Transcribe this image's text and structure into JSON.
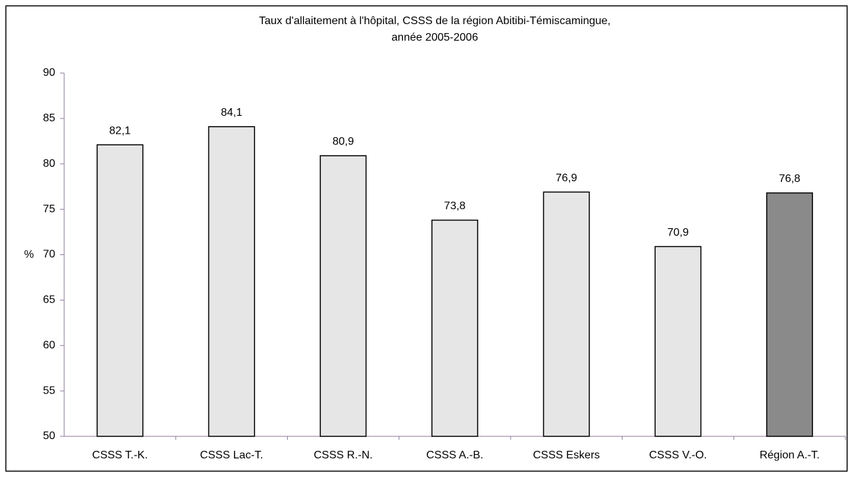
{
  "chart_data": {
    "type": "bar",
    "title": [
      "Taux d'allaitement à l'hôpital, CSSS de la région Abitibi-Témiscamingue,",
      "année 2005-2006"
    ],
    "y_label": "%",
    "categories": [
      "CSSS T.-K.",
      "CSSS Lac-T.",
      "CSSS R.-N.",
      "CSSS A.-B.",
      "CSSS Eskers",
      "CSSS V.-O.",
      "Région A.-T."
    ],
    "values": [
      82.1,
      84.1,
      80.9,
      73.8,
      76.9,
      70.9,
      76.8
    ],
    "value_labels": [
      "82,1",
      "84,1",
      "80,9",
      "73,8",
      "76,9",
      "70,9",
      "76,8"
    ],
    "colors": [
      "#e6e6e6",
      "#e6e6e6",
      "#e6e6e6",
      "#e6e6e6",
      "#e6e6e6",
      "#e6e6e6",
      "#8a8a8a"
    ],
    "ylim": [
      50,
      90
    ],
    "yticks": [
      50,
      55,
      60,
      65,
      70,
      75,
      80,
      85,
      90
    ],
    "grid": false
  }
}
